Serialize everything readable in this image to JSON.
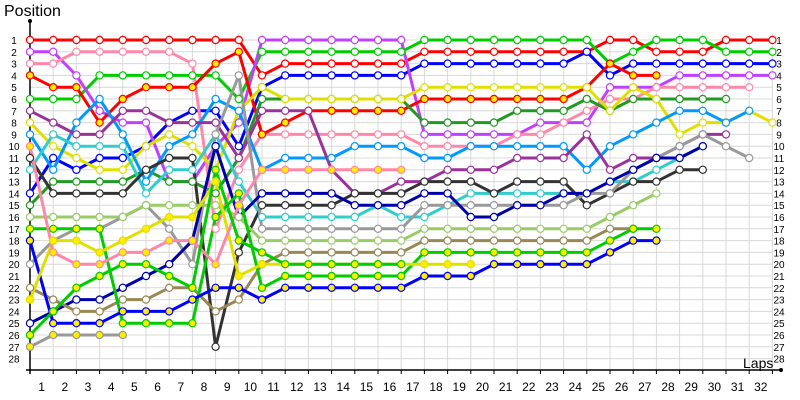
{
  "chart_data": {
    "type": "line",
    "title": "",
    "xlabel": "Laps",
    "ylabel": "Position",
    "x_ticks": [
      1,
      2,
      3,
      4,
      5,
      6,
      7,
      8,
      9,
      10,
      11,
      12,
      13,
      14,
      15,
      16,
      17,
      18,
      19,
      20,
      21,
      22,
      23,
      24,
      25,
      26,
      27,
      28,
      29,
      30,
      31,
      32
    ],
    "y_ticks": [
      1,
      2,
      3,
      4,
      5,
      6,
      7,
      8,
      9,
      10,
      11,
      12,
      13,
      14,
      15,
      16,
      17,
      18,
      19,
      20,
      21,
      22,
      23,
      24,
      25,
      26,
      27,
      28
    ],
    "xlim": [
      0,
      32
    ],
    "ylim": [
      1,
      28
    ],
    "y_inverted": true,
    "grid": true,
    "legend": "none",
    "series": [
      {
        "color": "#ff0000",
        "marker": "white",
        "values": [
          1,
          1,
          1,
          1,
          1,
          1,
          1,
          1,
          1,
          1,
          4,
          3,
          3,
          3,
          3,
          3,
          3,
          2,
          2,
          2,
          2,
          2,
          2,
          2,
          2,
          1,
          1,
          2,
          2,
          2,
          1,
          1,
          1
        ]
      },
      {
        "color": "#00cc00",
        "marker": "white",
        "values": [
          6,
          6,
          6,
          4,
          4,
          4,
          4,
          4,
          4,
          6,
          2,
          2,
          2,
          2,
          2,
          2,
          2,
          1,
          1,
          1,
          1,
          1,
          1,
          1,
          1,
          3,
          2,
          1,
          1,
          1,
          2,
          2,
          2
        ]
      },
      {
        "color": "#0000ff",
        "marker": "white",
        "values": [
          14,
          11,
          12,
          11,
          11,
          10,
          8,
          7,
          7,
          10,
          5,
          4,
          4,
          4,
          4,
          4,
          4,
          3,
          3,
          3,
          3,
          3,
          3,
          3,
          2,
          4,
          3,
          3,
          3,
          3,
          3,
          3,
          3
        ]
      },
      {
        "color": "#c040ff",
        "marker": "white",
        "values": [
          2,
          2,
          4,
          7,
          8,
          8,
          13,
          13,
          10,
          8,
          1,
          1,
          1,
          1,
          1,
          1,
          1,
          9,
          9,
          9,
          9,
          9,
          8,
          8,
          8,
          5,
          5,
          5,
          4,
          4,
          4,
          4,
          4
        ]
      },
      {
        "color": "#ff88aa",
        "marker": "white",
        "values": [
          3,
          3,
          2,
          2,
          2,
          2,
          2,
          3,
          17,
          12,
          9,
          9,
          9,
          9,
          9,
          9,
          9,
          10,
          10,
          10,
          10,
          9,
          9,
          8,
          7,
          6,
          6,
          5,
          5,
          5,
          5,
          5
        ]
      },
      {
        "color": "#ff0000",
        "marker": "yellow",
        "values": [
          4,
          5,
          5,
          8,
          6,
          5,
          5,
          5,
          3,
          2,
          9,
          8,
          7,
          7,
          7,
          7,
          7,
          6,
          6,
          6,
          6,
          6,
          6,
          6,
          5,
          3,
          4,
          4
        ]
      },
      {
        "color": "#229922",
        "marker": "white",
        "values": [
          15,
          13,
          13,
          13,
          13,
          12,
          13,
          13,
          14,
          11,
          6,
          6,
          6,
          6,
          6,
          6,
          6,
          8,
          8,
          8,
          8,
          7,
          7,
          7,
          6,
          7,
          6,
          6,
          6,
          6,
          6
        ]
      },
      {
        "color": "#e0e000",
        "marker": "white",
        "values": [
          8,
          10,
          11,
          12,
          12,
          10,
          9,
          10,
          12,
          7,
          5,
          6,
          6,
          6,
          6,
          6,
          6,
          5,
          5,
          5,
          5,
          5,
          5,
          5,
          5,
          7,
          5,
          6,
          9,
          8,
          8,
          7,
          8
        ]
      },
      {
        "color": "#0099ff",
        "marker": "white",
        "values": [
          9,
          12,
          8,
          6,
          9,
          13,
          10,
          9,
          6,
          7,
          12,
          11,
          11,
          11,
          10,
          10,
          10,
          11,
          11,
          10,
          10,
          10,
          10,
          10,
          12,
          10,
          9,
          8,
          7,
          7,
          8,
          7
        ]
      },
      {
        "color": "#993399",
        "marker": "white",
        "values": [
          7,
          8,
          9,
          9,
          7,
          7,
          8,
          8,
          8,
          11,
          7,
          7,
          7,
          12,
          14,
          14,
          13,
          13,
          12,
          12,
          12,
          11,
          11,
          11,
          9,
          12,
          11,
          11,
          10,
          9,
          9
        ]
      },
      {
        "color": "#33cccc",
        "marker": "white",
        "values": [
          12,
          9,
          10,
          10,
          10,
          14,
          12,
          12,
          9,
          13,
          16,
          16,
          16,
          16,
          16,
          15,
          16,
          16,
          15,
          14,
          14,
          14,
          14,
          14,
          14,
          13,
          13,
          12,
          11,
          10
        ]
      },
      {
        "color": "#333333",
        "marker": "white",
        "values": [
          11,
          14,
          14,
          14,
          14,
          12,
          11,
          11,
          27,
          19,
          15,
          15,
          15,
          15,
          14,
          14,
          14,
          13,
          13,
          13,
          14,
          13,
          13,
          13,
          15,
          14,
          13,
          13,
          12,
          12
        ]
      },
      {
        "color": "#999999",
        "marker": "white",
        "values": [
          20,
          18,
          17,
          17,
          16,
          15,
          17,
          20,
          9,
          4,
          17,
          17,
          17,
          17,
          17,
          17,
          17,
          15,
          15,
          15,
          15,
          15,
          15,
          15,
          14,
          14,
          12,
          11,
          10,
          9,
          10,
          11
        ]
      },
      {
        "color": "#0000aa",
        "marker": "white",
        "values": [
          25,
          24,
          23,
          23,
          22,
          21,
          20,
          18,
          10,
          16,
          14,
          14,
          14,
          14,
          15,
          15,
          15,
          14,
          14,
          16,
          16,
          15,
          15,
          14,
          14,
          13,
          12,
          11,
          11,
          10
        ]
      },
      {
        "color": "#99cc66",
        "marker": "white",
        "values": [
          16,
          16,
          16,
          16,
          16,
          15,
          15,
          15,
          15,
          16,
          18,
          18,
          18,
          18,
          18,
          18,
          18,
          17,
          17,
          17,
          17,
          17,
          17,
          17,
          17,
          16,
          15,
          14
        ]
      },
      {
        "color": "#998855",
        "marker": "white",
        "values": [
          22,
          23,
          24,
          24,
          23,
          23,
          22,
          22,
          24,
          23,
          20,
          19,
          19,
          19,
          19,
          19,
          19,
          18,
          18,
          18,
          18,
          18,
          18,
          18,
          18,
          17,
          17
        ]
      },
      {
        "color": "#00cc00",
        "marker": "yellow",
        "values": [
          17,
          17,
          17,
          17,
          25,
          25,
          25,
          25,
          16,
          14,
          22,
          21,
          21,
          21,
          21,
          21,
          21,
          19,
          19,
          19,
          19,
          19,
          19,
          19,
          19,
          18,
          17,
          17
        ]
      },
      {
        "color": "#0000ff",
        "marker": "yellow",
        "values": [
          18,
          25,
          25,
          25,
          24,
          24,
          24,
          23,
          22,
          22,
          23,
          22,
          22,
          22,
          22,
          22,
          22,
          21,
          21,
          21,
          20,
          20,
          20,
          20,
          20,
          19,
          18,
          18
        ]
      },
      {
        "color": "#e0e000",
        "marker": "yellow",
        "values": [
          23,
          18,
          18,
          19,
          18,
          17,
          16,
          16,
          13,
          21,
          20,
          20,
          20,
          20,
          20,
          20,
          20,
          20,
          20,
          20
        ]
      },
      {
        "color": "#ff88aa",
        "marker": "yellow",
        "values": [
          10,
          19,
          20,
          20,
          19,
          19,
          18,
          18,
          20,
          15,
          12,
          12,
          12,
          12,
          12,
          12,
          12
        ]
      },
      {
        "color": "#999999",
        "marker": "yellow",
        "values": [
          27,
          26,
          26,
          26,
          26
        ]
      },
      {
        "color": "#00cc00",
        "marker": "yellow",
        "values": [
          26,
          24,
          22,
          21,
          20,
          20,
          21,
          22,
          12,
          18,
          19,
          20,
          20,
          20,
          20,
          20,
          20
        ]
      }
    ]
  }
}
